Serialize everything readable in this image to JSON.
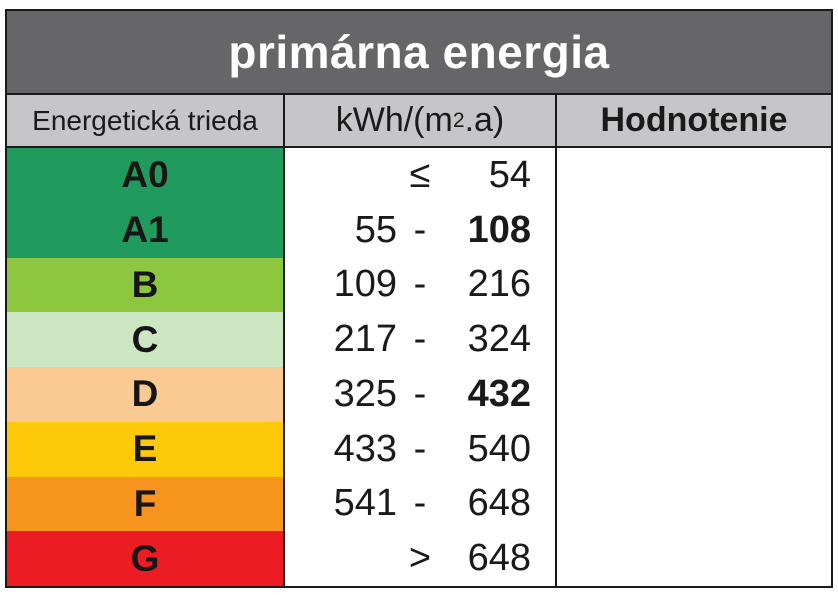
{
  "title": "primárna energia",
  "columns": {
    "class_label": "Energetická trieda",
    "unit_prefix": "kWh/(m",
    "unit_sup": "2",
    "unit_suffix": ".a)",
    "rating_label": "Hodnotenie"
  },
  "colors": {
    "banner_bg": "#666567",
    "header_bg": "#c6c6c8",
    "border": "#1a1a1a"
  },
  "table": {
    "rows": [
      {
        "class": "A0",
        "color": "#219a5e",
        "low": "",
        "sep": "≤",
        "high": "54",
        "high_bold": false
      },
      {
        "class": "A1",
        "color": "#219a5e",
        "low": "55",
        "sep": "-",
        "high": "108",
        "high_bold": true
      },
      {
        "class": "B",
        "color": "#8dc63f",
        "low": "109",
        "sep": "-",
        "high": "216",
        "high_bold": false
      },
      {
        "class": "C",
        "color": "#cde7c3",
        "low": "217",
        "sep": "-",
        "high": "324",
        "high_bold": false
      },
      {
        "class": "D",
        "color": "#fbc992",
        "low": "325",
        "sep": "-",
        "high": "432",
        "high_bold": true
      },
      {
        "class": "E",
        "color": "#fdc908",
        "low": "433",
        "sep": "-",
        "high": "540",
        "high_bold": false
      },
      {
        "class": "F",
        "color": "#f7941e",
        "low": "541",
        "sep": "-",
        "high": "648",
        "high_bold": false
      },
      {
        "class": "G",
        "color": "#ed1c24",
        "low": "",
        "sep": ">",
        "high": "648",
        "high_bold": false
      }
    ],
    "rating_value": ""
  }
}
